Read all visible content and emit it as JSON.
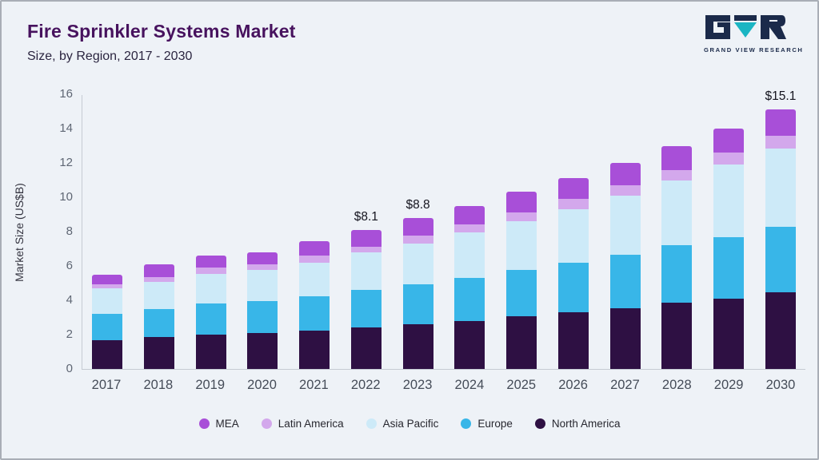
{
  "header": {
    "title": "Fire Sprinkler Systems Market",
    "subtitle": "Size, by Region, 2017 - 2030",
    "logo_text": "GRAND VIEW RESEARCH"
  },
  "chart_data": {
    "type": "bar",
    "stacked": true,
    "title": "Fire Sprinkler Systems Market Size, by Region, 2017 - 2030",
    "xlabel": "",
    "ylabel": "Market Size (US$B)",
    "ylim": [
      0,
      16
    ],
    "ytick_step": 2,
    "grid": false,
    "legend_position": "bottom",
    "categories": [
      "2017",
      "2018",
      "2019",
      "2020",
      "2021",
      "2022",
      "2023",
      "2024",
      "2025",
      "2026",
      "2027",
      "2028",
      "2029",
      "2030"
    ],
    "series": [
      {
        "name": "North America",
        "color": "#2e1043",
        "values": [
          1.7,
          1.85,
          2.0,
          2.1,
          2.25,
          2.4,
          2.6,
          2.8,
          3.05,
          3.3,
          3.55,
          3.85,
          4.1,
          4.45
        ]
      },
      {
        "name": "Europe",
        "color": "#38b6e8",
        "values": [
          1.5,
          1.65,
          1.8,
          1.85,
          2.0,
          2.2,
          2.35,
          2.5,
          2.7,
          2.9,
          3.1,
          3.35,
          3.6,
          3.85
        ]
      },
      {
        "name": "Asia Pacific",
        "color": "#cdeaf8",
        "values": [
          1.5,
          1.55,
          1.75,
          1.8,
          1.95,
          2.2,
          2.35,
          2.65,
          2.85,
          3.1,
          3.45,
          3.8,
          4.2,
          4.55
        ]
      },
      {
        "name": "Latin America",
        "color": "#d3a8ec",
        "values": [
          0.25,
          0.3,
          0.35,
          0.35,
          0.4,
          0.3,
          0.45,
          0.45,
          0.5,
          0.6,
          0.6,
          0.6,
          0.7,
          0.75
        ]
      },
      {
        "name": "MEA",
        "color": "#a84fd8",
        "values": [
          0.55,
          0.75,
          0.7,
          0.7,
          0.85,
          1.0,
          1.05,
          1.1,
          1.2,
          1.2,
          1.3,
          1.4,
          1.4,
          1.5
        ]
      }
    ],
    "totals": [
      5.5,
      6.1,
      6.6,
      6.8,
      7.45,
      8.1,
      8.8,
      9.5,
      10.3,
      11.1,
      12.0,
      13.0,
      14.0,
      15.1
    ],
    "bar_labels": {
      "2022": "$8.1",
      "2023": "$8.8",
      "2030": "$15.1"
    },
    "legend_order": [
      "MEA",
      "Latin America",
      "Asia Pacific",
      "Europe",
      "North America"
    ]
  },
  "colors": {
    "background": "#eef2f7",
    "title": "#47125e",
    "axis_line": "#c5cbd3",
    "logo_dark": "#1b2a4a",
    "logo_teal": "#1ab5c3"
  }
}
